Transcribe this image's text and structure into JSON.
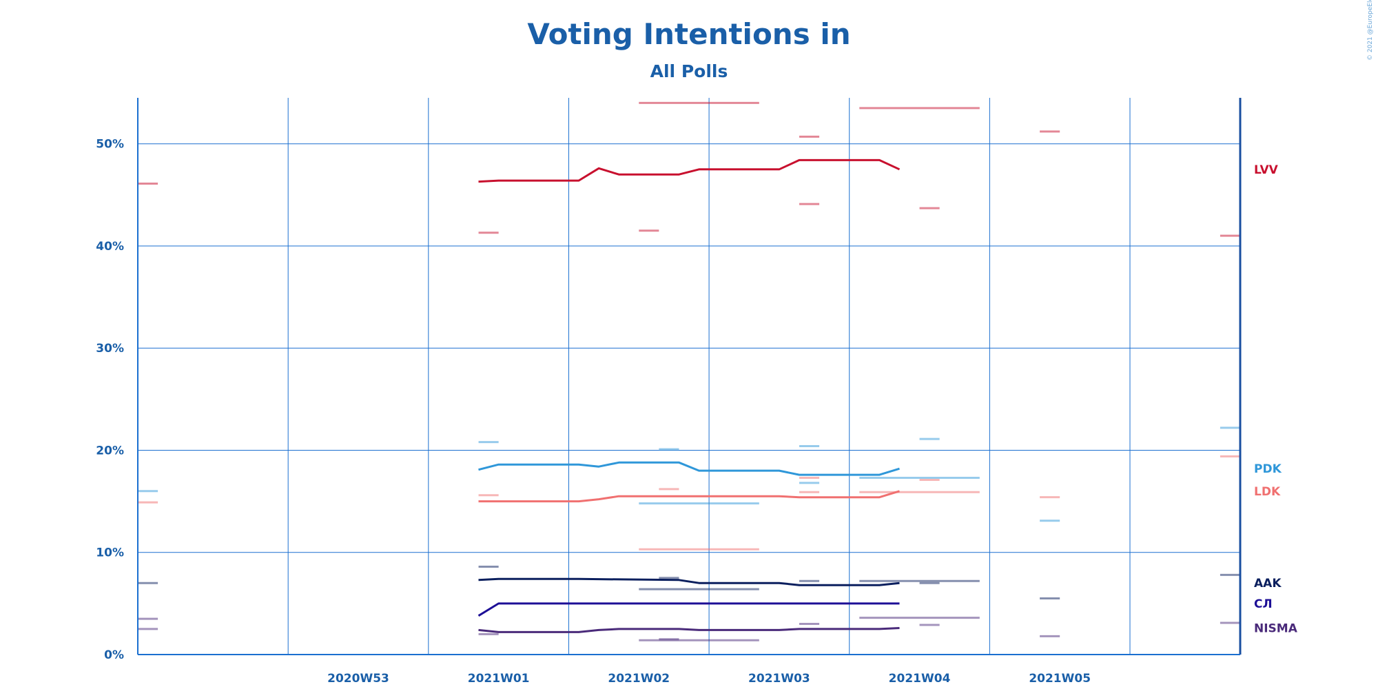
{
  "chart_data": {
    "type": "line",
    "title": "Voting Intentions in",
    "subtitle": "All Polls",
    "copyright": "© 2021 @EuropeElects",
    "x_domain": [
      "2020-12-20",
      "2021-02-13"
    ],
    "x_ticks": [
      {
        "label": "2020W53",
        "date": "2020-12-31"
      },
      {
        "label": "2021W01",
        "date": "2021-01-07"
      },
      {
        "label": "2021W02",
        "date": "2021-01-14"
      },
      {
        "label": "2021W03",
        "date": "2021-01-21"
      },
      {
        "label": "2021W04",
        "date": "2021-01-28"
      },
      {
        "label": "2021W05",
        "date": "2021-02-04"
      }
    ],
    "ylim": [
      0,
      54.5
    ],
    "y_ticks": [
      0,
      10,
      20,
      30,
      40,
      50
    ],
    "y_tick_labels": [
      "0%",
      "10%",
      "20%",
      "30%",
      "40%",
      "50%"
    ],
    "grid": true,
    "legend": "right",
    "series": [
      {
        "name": "LVV",
        "color": "#c8102e",
        "label_size": 17,
        "trend": [
          [
            "2021-01-06",
            46.3
          ],
          [
            "2021-01-07",
            46.4
          ],
          [
            "2021-01-11",
            46.4
          ],
          [
            "2021-01-12",
            47.6
          ],
          [
            "2021-01-13",
            47.0
          ],
          [
            "2021-01-16",
            47.0
          ],
          [
            "2021-01-17",
            47.5
          ],
          [
            "2021-01-21",
            47.5
          ],
          [
            "2021-01-22",
            48.4
          ],
          [
            "2021-01-26",
            48.4
          ],
          [
            "2021-01-27",
            47.5
          ]
        ],
        "polls": [
          [
            "2020-12-20",
            "2020-12-21",
            46.1
          ],
          [
            "2021-01-06",
            "2021-01-07",
            41.3
          ],
          [
            "2021-01-14",
            "2021-01-20",
            54.0
          ],
          [
            "2021-01-14",
            "2021-01-15",
            41.5
          ],
          [
            "2021-01-22",
            "2021-01-23",
            50.7
          ],
          [
            "2021-01-22",
            "2021-01-23",
            44.1
          ],
          [
            "2021-01-25",
            "2021-01-31",
            53.5
          ],
          [
            "2021-01-28",
            "2021-01-29",
            43.7
          ],
          [
            "2021-02-03",
            "2021-02-04",
            51.2
          ],
          [
            "2021-02-12",
            "2021-02-13",
            41.0
          ]
        ]
      },
      {
        "name": "PDK",
        "color": "#2f97d9",
        "label_size": 17,
        "trend": [
          [
            "2021-01-06",
            18.1
          ],
          [
            "2021-01-07",
            18.6
          ],
          [
            "2021-01-11",
            18.6
          ],
          [
            "2021-01-12",
            18.4
          ],
          [
            "2021-01-13",
            18.8
          ],
          [
            "2021-01-16",
            18.8
          ],
          [
            "2021-01-17",
            18.0
          ],
          [
            "2021-01-21",
            18.0
          ],
          [
            "2021-01-22",
            17.6
          ],
          [
            "2021-01-26",
            17.6
          ],
          [
            "2021-01-27",
            18.2
          ]
        ],
        "polls": [
          [
            "2020-12-20",
            "2020-12-21",
            16.0
          ],
          [
            "2021-01-06",
            "2021-01-07",
            20.8
          ],
          [
            "2021-01-14",
            "2021-01-20",
            14.8
          ],
          [
            "2021-01-15",
            "2021-01-16",
            20.1
          ],
          [
            "2021-01-22",
            "2021-01-23",
            20.4
          ],
          [
            "2021-01-22",
            "2021-01-23",
            16.8
          ],
          [
            "2021-01-25",
            "2021-01-31",
            17.3
          ],
          [
            "2021-01-28",
            "2021-01-29",
            21.1
          ],
          [
            "2021-02-03",
            "2021-02-04",
            13.1
          ],
          [
            "2021-02-12",
            "2021-02-13",
            22.2
          ]
        ]
      },
      {
        "name": "LDK",
        "color": "#f07070",
        "label_size": 17,
        "trend": [
          [
            "2021-01-06",
            15.0
          ],
          [
            "2021-01-11",
            15.0
          ],
          [
            "2021-01-12",
            15.2
          ],
          [
            "2021-01-13",
            15.5
          ],
          [
            "2021-01-21",
            15.5
          ],
          [
            "2021-01-22",
            15.4
          ],
          [
            "2021-01-26",
            15.4
          ],
          [
            "2021-01-27",
            16.0
          ]
        ],
        "polls": [
          [
            "2020-12-20",
            "2020-12-21",
            14.9
          ],
          [
            "2021-01-06",
            "2021-01-07",
            15.6
          ],
          [
            "2021-01-14",
            "2021-01-20",
            10.3
          ],
          [
            "2021-01-15",
            "2021-01-16",
            16.2
          ],
          [
            "2021-01-22",
            "2021-01-23",
            17.3
          ],
          [
            "2021-01-22",
            "2021-01-23",
            15.9
          ],
          [
            "2021-01-25",
            "2021-01-31",
            15.9
          ],
          [
            "2021-01-28",
            "2021-01-29",
            17.1
          ],
          [
            "2021-02-03",
            "2021-02-04",
            15.4
          ],
          [
            "2021-02-12",
            "2021-02-13",
            19.4
          ]
        ]
      },
      {
        "name": "AAK",
        "color": "#0b1f5e",
        "label_size": 17,
        "trend": [
          [
            "2021-01-06",
            7.3
          ],
          [
            "2021-01-07",
            7.4
          ],
          [
            "2021-01-11",
            7.4
          ],
          [
            "2021-01-16",
            7.3
          ],
          [
            "2021-01-17",
            7.0
          ],
          [
            "2021-01-21",
            7.0
          ],
          [
            "2021-01-22",
            6.8
          ],
          [
            "2021-01-26",
            6.8
          ],
          [
            "2021-01-27",
            7.0
          ]
        ],
        "polls": [
          [
            "2020-12-20",
            "2020-12-21",
            7.0
          ],
          [
            "2021-01-06",
            "2021-01-07",
            8.6
          ],
          [
            "2021-01-14",
            "2021-01-20",
            6.4
          ],
          [
            "2021-01-15",
            "2021-01-16",
            7.5
          ],
          [
            "2021-01-22",
            "2021-01-23",
            7.2
          ],
          [
            "2021-01-25",
            "2021-01-31",
            7.2
          ],
          [
            "2021-01-28",
            "2021-01-29",
            7.0
          ],
          [
            "2021-02-03",
            "2021-02-04",
            5.5
          ],
          [
            "2021-02-12",
            "2021-02-13",
            7.8
          ]
        ]
      },
      {
        "name": "СЛ",
        "color": "#1d0f96",
        "label_size": 21,
        "trend": [
          [
            "2021-01-06",
            3.8
          ],
          [
            "2021-01-07",
            5.0
          ],
          [
            "2021-01-27",
            5.0
          ]
        ],
        "polls": []
      },
      {
        "name": "NISMA",
        "color": "#4a2a7a",
        "label_size": 17,
        "trend": [
          [
            "2021-01-06",
            2.4
          ],
          [
            "2021-01-07",
            2.2
          ],
          [
            "2021-01-11",
            2.2
          ],
          [
            "2021-01-12",
            2.4
          ],
          [
            "2021-01-13",
            2.5
          ],
          [
            "2021-01-16",
            2.5
          ],
          [
            "2021-01-17",
            2.4
          ],
          [
            "2021-01-21",
            2.4
          ],
          [
            "2021-01-22",
            2.5
          ],
          [
            "2021-01-26",
            2.5
          ],
          [
            "2021-01-27",
            2.6
          ]
        ],
        "polls": [
          [
            "2020-12-20",
            "2020-12-21",
            3.5
          ],
          [
            "2020-12-20",
            "2020-12-21",
            2.5
          ],
          [
            "2021-01-06",
            "2021-01-07",
            2.0
          ],
          [
            "2021-01-14",
            "2021-01-20",
            1.4
          ],
          [
            "2021-01-15",
            "2021-01-16",
            1.5
          ],
          [
            "2021-01-22",
            "2021-01-23",
            3.0
          ],
          [
            "2021-01-25",
            "2021-01-31",
            3.6
          ],
          [
            "2021-01-28",
            "2021-01-29",
            2.9
          ],
          [
            "2021-02-03",
            "2021-02-04",
            1.8
          ],
          [
            "2021-02-12",
            "2021-02-13",
            3.1
          ]
        ]
      }
    ]
  }
}
